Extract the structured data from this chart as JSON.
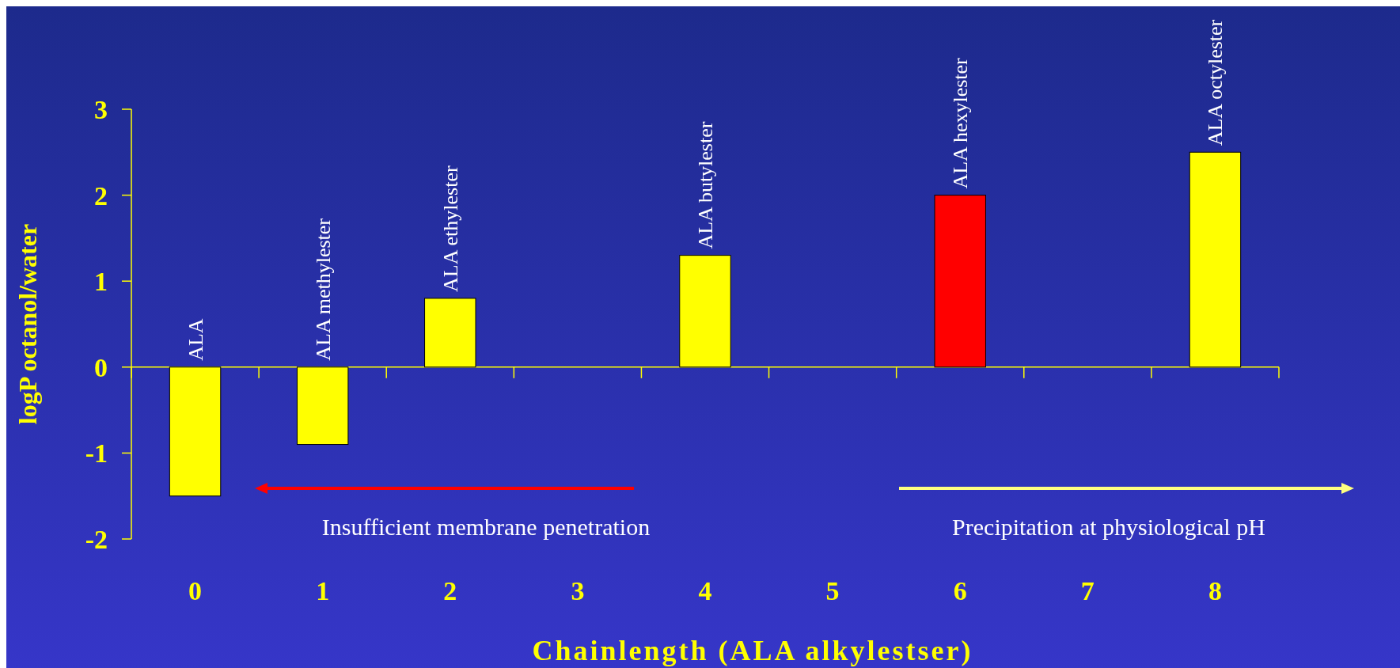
{
  "chart_data": {
    "type": "bar",
    "xlabel": "Chainlength (ALA alkylestser)",
    "ylabel": "logP octanol/water",
    "categories": [
      "0",
      "1",
      "2",
      "3",
      "4",
      "5",
      "6",
      "7",
      "8"
    ],
    "values": [
      -1.5,
      -0.9,
      0.8,
      null,
      1.3,
      null,
      2.0,
      null,
      2.5
    ],
    "colors": [
      "#ffff00",
      "#ffff00",
      "#ffff00",
      null,
      "#ffff00",
      null,
      "#ff0000",
      null,
      "#ffff00"
    ],
    "ylim": [
      -2,
      3
    ],
    "yticks": [
      -2,
      -1,
      0,
      1,
      2,
      3
    ],
    "grid": false,
    "ref_lines": [
      {
        "axis": "y",
        "value": 0,
        "color": "#ffff00"
      }
    ],
    "annotations": [
      {
        "text": "ALA",
        "x": "0",
        "y": 0
      },
      {
        "text": "ALA methylester",
        "x": "1",
        "y": 0
      },
      {
        "text": "ALA ethylester",
        "x": "2",
        "y": 0.8
      },
      {
        "text": "ALA butylester",
        "x": "4",
        "y": 1.3
      },
      {
        "text": "ALA hexylester",
        "x": "6",
        "y": 2.0
      },
      {
        "text": "ALA octylester",
        "x": "8",
        "y": 2.5
      },
      "Insufficient membrane penetration",
      "Precipitation at physiological pH"
    ]
  }
}
